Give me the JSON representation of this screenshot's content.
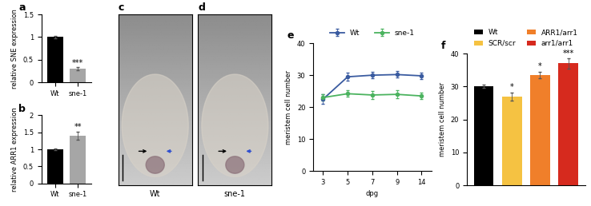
{
  "chart_data": [
    {
      "type": "bar",
      "title": "a",
      "categories": [
        "Wt",
        "sne-1"
      ],
      "values": [
        1.0,
        0.3
      ],
      "errors": [
        0.02,
        0.03
      ],
      "colors": [
        "#000000",
        "#a6a6a6"
      ],
      "ylabel": "relative SNE expression",
      "ylim": [
        0,
        1.5
      ],
      "yticks": [
        0,
        0.5,
        1,
        1.5
      ],
      "annotations": [
        {
          "category": "sne-1",
          "text": "***"
        }
      ]
    },
    {
      "type": "bar",
      "title": "b",
      "categories": [
        "Wt",
        "sne-1"
      ],
      "values": [
        1.0,
        1.4
      ],
      "errors": [
        0.03,
        0.12
      ],
      "colors": [
        "#000000",
        "#a6a6a6"
      ],
      "ylabel": "relative ARR1 expression",
      "ylim": [
        0,
        2
      ],
      "yticks": [
        0,
        0.5,
        1,
        1.5,
        2
      ],
      "annotations": [
        {
          "category": "sne-1",
          "text": "**"
        }
      ]
    },
    {
      "type": "image",
      "title": "c",
      "label": "Wt"
    },
    {
      "type": "image",
      "title": "d",
      "label": "sne-1"
    },
    {
      "type": "line",
      "title": "e",
      "categories": [
        "3",
        "5",
        "7",
        "9",
        "14"
      ],
      "xlabel": "dpg",
      "ylabel": "meristem cell number",
      "ylim": [
        0,
        40
      ],
      "yticks": [
        0,
        10,
        20,
        30,
        40
      ],
      "legend": "top",
      "series": [
        {
          "name": "Wt",
          "color": "#3a5ba0",
          "marker": "o",
          "values": [
            22.5,
            29.5,
            30.0,
            30.2,
            29.8
          ],
          "errors": [
            1.5,
            1.2,
            1.0,
            1.0,
            1.0
          ]
        },
        {
          "name": "sne-1",
          "color": "#4bb35f",
          "marker": "o",
          "values": [
            23.0,
            24.2,
            23.8,
            24.0,
            23.5
          ],
          "errors": [
            1.0,
            1.0,
            1.2,
            1.2,
            1.0
          ]
        }
      ]
    },
    {
      "type": "bar",
      "title": "f",
      "categories": [
        "Wt",
        "SCR/scr",
        "ARR1/arr1",
        "arr1/arr1"
      ],
      "values": [
        30,
        27,
        33.5,
        37
      ],
      "errors": [
        0.5,
        1.2,
        1.0,
        1.5
      ],
      "colors": [
        "#000000",
        "#f5c242",
        "#f07f2a",
        "#d62a1e"
      ],
      "ylabel": "meristem cell number",
      "ylim": [
        0,
        40
      ],
      "yticks": [
        0,
        10,
        20,
        30,
        40
      ],
      "legend": "top",
      "tick_labels": "y",
      "annotations": [
        {
          "category": "SCR/scr",
          "text": "*"
        },
        {
          "category": "ARR1/arr1",
          "text": "*"
        },
        {
          "category": "arr1/arr1",
          "text": "***"
        }
      ]
    }
  ]
}
